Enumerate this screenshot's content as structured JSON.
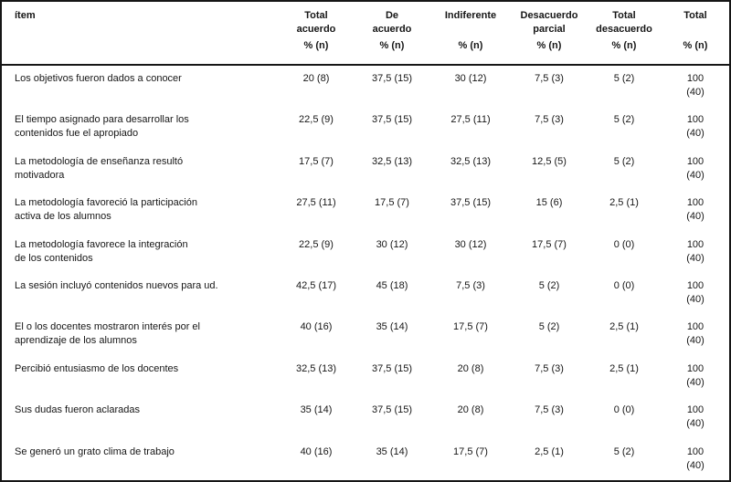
{
  "table": {
    "item_header": "ítem",
    "value_columns": [
      {
        "line1": "Total",
        "line2": "acuerdo",
        "unit": "% (n)"
      },
      {
        "line1": "De",
        "line2": "acuerdo",
        "unit": "% (n)"
      },
      {
        "line1": "Indiferente",
        "line2": "",
        "unit": "% (n)"
      },
      {
        "line1": "Desacuerdo",
        "line2": "parcial",
        "unit": "% (n)"
      },
      {
        "line1": "Total",
        "line2": "desacuerdo",
        "unit": "% (n)"
      },
      {
        "line1": "Total",
        "line2": "",
        "unit": "% (n)"
      }
    ],
    "rows": [
      {
        "item": "Los objetivos fueron dados a conocer",
        "values": [
          "20 (8)",
          "37,5 (15)",
          "30 (12)",
          "7,5 (3)",
          "5 (2)",
          "100 (40)"
        ]
      },
      {
        "item": "El tiempo asignado para desarrollar los\ncontenidos fue el apropiado",
        "values": [
          "22,5 (9)",
          "37,5 (15)",
          "27,5 (11)",
          "7,5 (3)",
          "5 (2)",
          "100 (40)"
        ]
      },
      {
        "item": "La metodología de enseñanza resultó\nmotivadora",
        "values": [
          "17,5 (7)",
          "32,5 (13)",
          "32,5 (13)",
          "12,5 (5)",
          "5 (2)",
          "100 (40)"
        ]
      },
      {
        "item": "La metodología favoreció la participación\nactiva de los alumnos",
        "values": [
          "27,5 (11)",
          "17,5 (7)",
          "37,5 (15)",
          "15 (6)",
          "2,5 (1)",
          "100 (40)"
        ]
      },
      {
        "item": "La metodología favorece la integración\nde los contenidos",
        "values": [
          "22,5 (9)",
          "30 (12)",
          "30 (12)",
          "17,5 (7)",
          "0 (0)",
          "100 (40)"
        ]
      },
      {
        "item": "La sesión incluyó contenidos nuevos para ud.",
        "values": [
          "42,5 (17)",
          "45 (18)",
          "7,5 (3)",
          "5 (2)",
          "0 (0)",
          "100 (40)"
        ]
      },
      {
        "item": "El o los docentes mostraron interés por el\naprendizaje de los alumnos",
        "values": [
          "40 (16)",
          "35 (14)",
          "17,5 (7)",
          "5 (2)",
          "2,5 (1)",
          "100 (40)"
        ]
      },
      {
        "item": "Percibió entusiasmo de los docentes",
        "values": [
          "32,5 (13)",
          "37,5 (15)",
          "20 (8)",
          "7,5 (3)",
          "2,5 (1)",
          "100 (40)"
        ]
      },
      {
        "item": "Sus dudas fueron aclaradas",
        "values": [
          "35 (14)",
          "37,5 (15)",
          "20 (8)",
          "7,5 (3)",
          "0 (0)",
          "100 (40)"
        ]
      },
      {
        "item": "Se generó un grato clima de trabajo",
        "values": [
          "40 (16)",
          "35 (14)",
          "17,5 (7)",
          "2,5 (1)",
          "5 (2)",
          "100 (40)"
        ]
      }
    ]
  }
}
